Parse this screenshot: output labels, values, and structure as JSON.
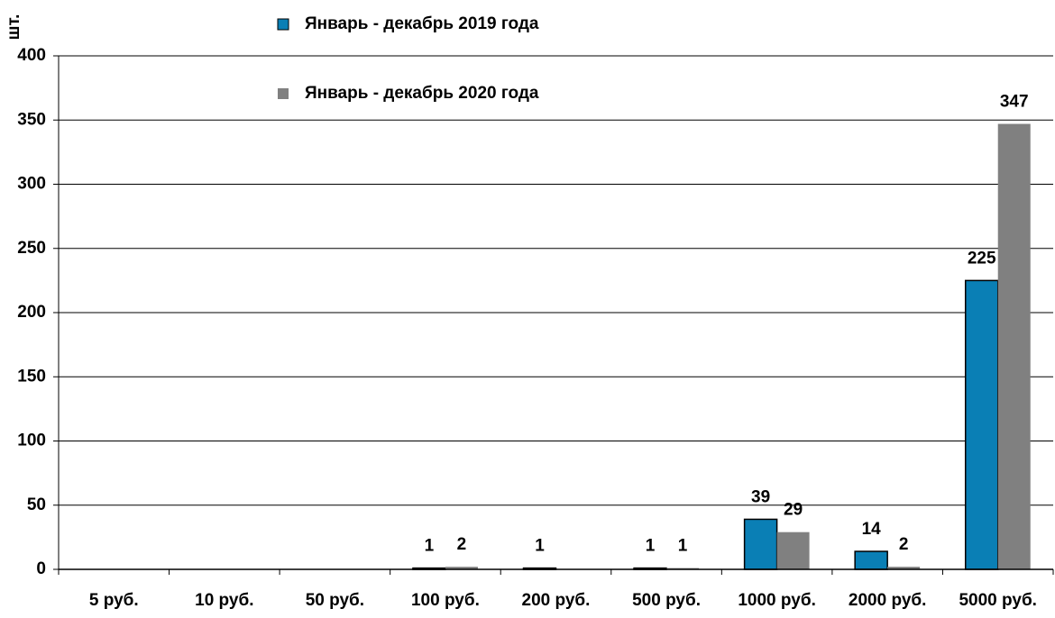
{
  "chart_data": {
    "type": "bar",
    "y_label": "шт.",
    "categories": [
      "5 руб.",
      "10 руб.",
      "50 руб.",
      "100 руб.",
      "200 руб.",
      "500 руб.",
      "1000 руб.",
      "2000 руб.",
      "5000 руб."
    ],
    "series": [
      {
        "name": "Январь - декабрь 2019 года",
        "color": "#0a7fb5",
        "values": [
          null,
          null,
          null,
          1,
          1,
          1,
          39,
          14,
          225
        ]
      },
      {
        "name": "Январь - декабрь 2020 года",
        "color": "#808080",
        "values": [
          null,
          null,
          null,
          2,
          null,
          1,
          29,
          2,
          347
        ]
      }
    ],
    "ylim": [
      0,
      400
    ],
    "yticks": [
      0,
      50,
      100,
      150,
      200,
      250,
      300,
      350,
      400
    ],
    "grid": true
  }
}
